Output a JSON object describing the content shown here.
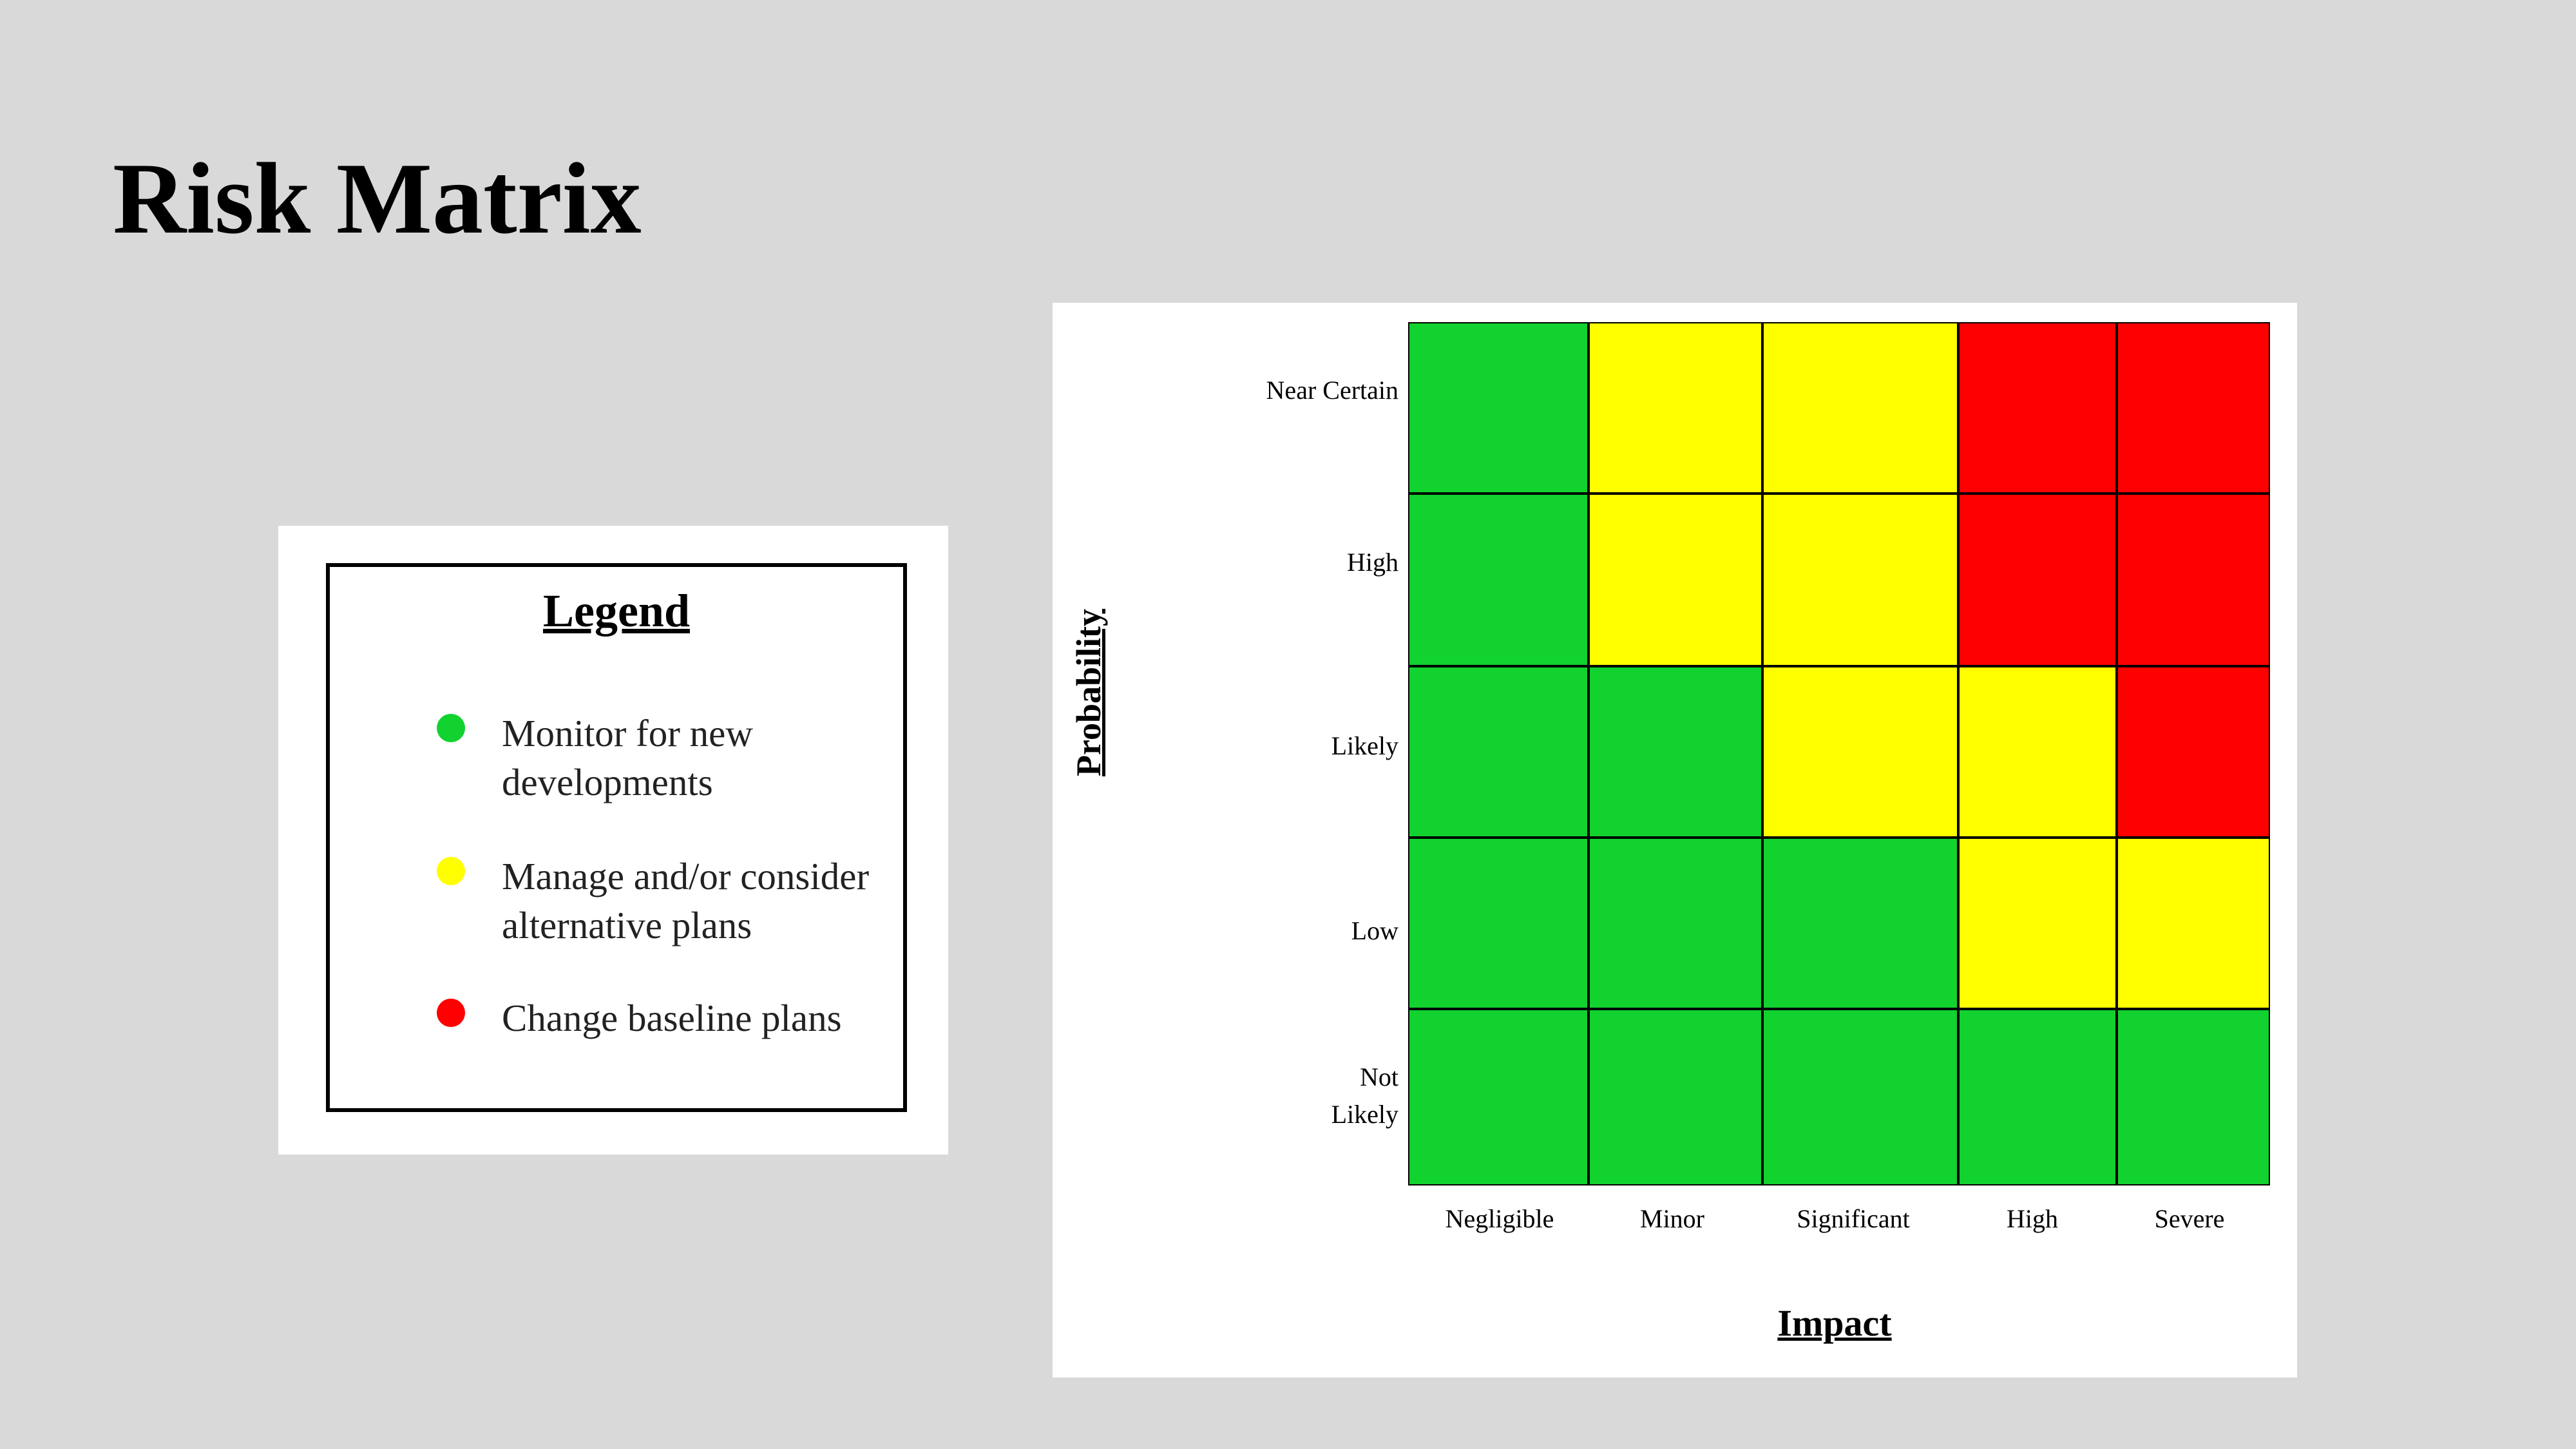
{
  "slide": {
    "title": "Risk Matrix"
  },
  "legend": {
    "title": "Legend",
    "items": [
      {
        "label": "Monitor for new developments",
        "color": "#11d22f"
      },
      {
        "label": "Manage and/or consider alternative plans",
        "color": "#ffff00"
      },
      {
        "label": "Change baseline plans",
        "color": "#ff0000"
      }
    ]
  },
  "matrix": {
    "probability_axis_label": "Probability",
    "impact_axis_label": "Impact",
    "rows": [
      "Near Certain",
      "High",
      "Likely",
      "Low",
      "Not\nLikely"
    ],
    "columns": [
      "Negligible",
      "Minor",
      "Significant",
      "High",
      "Severe"
    ],
    "colors": {
      "green": "#11d22f",
      "yellow": "#ffff00",
      "red": "#ff0000"
    },
    "cells": [
      [
        "green",
        "yellow",
        "yellow",
        "red",
        "red"
      ],
      [
        "green",
        "yellow",
        "yellow",
        "red",
        "red"
      ],
      [
        "green",
        "green",
        "yellow",
        "yellow",
        "red"
      ],
      [
        "green",
        "green",
        "green",
        "yellow",
        "yellow"
      ],
      [
        "green",
        "green",
        "green",
        "green",
        "green"
      ]
    ]
  }
}
